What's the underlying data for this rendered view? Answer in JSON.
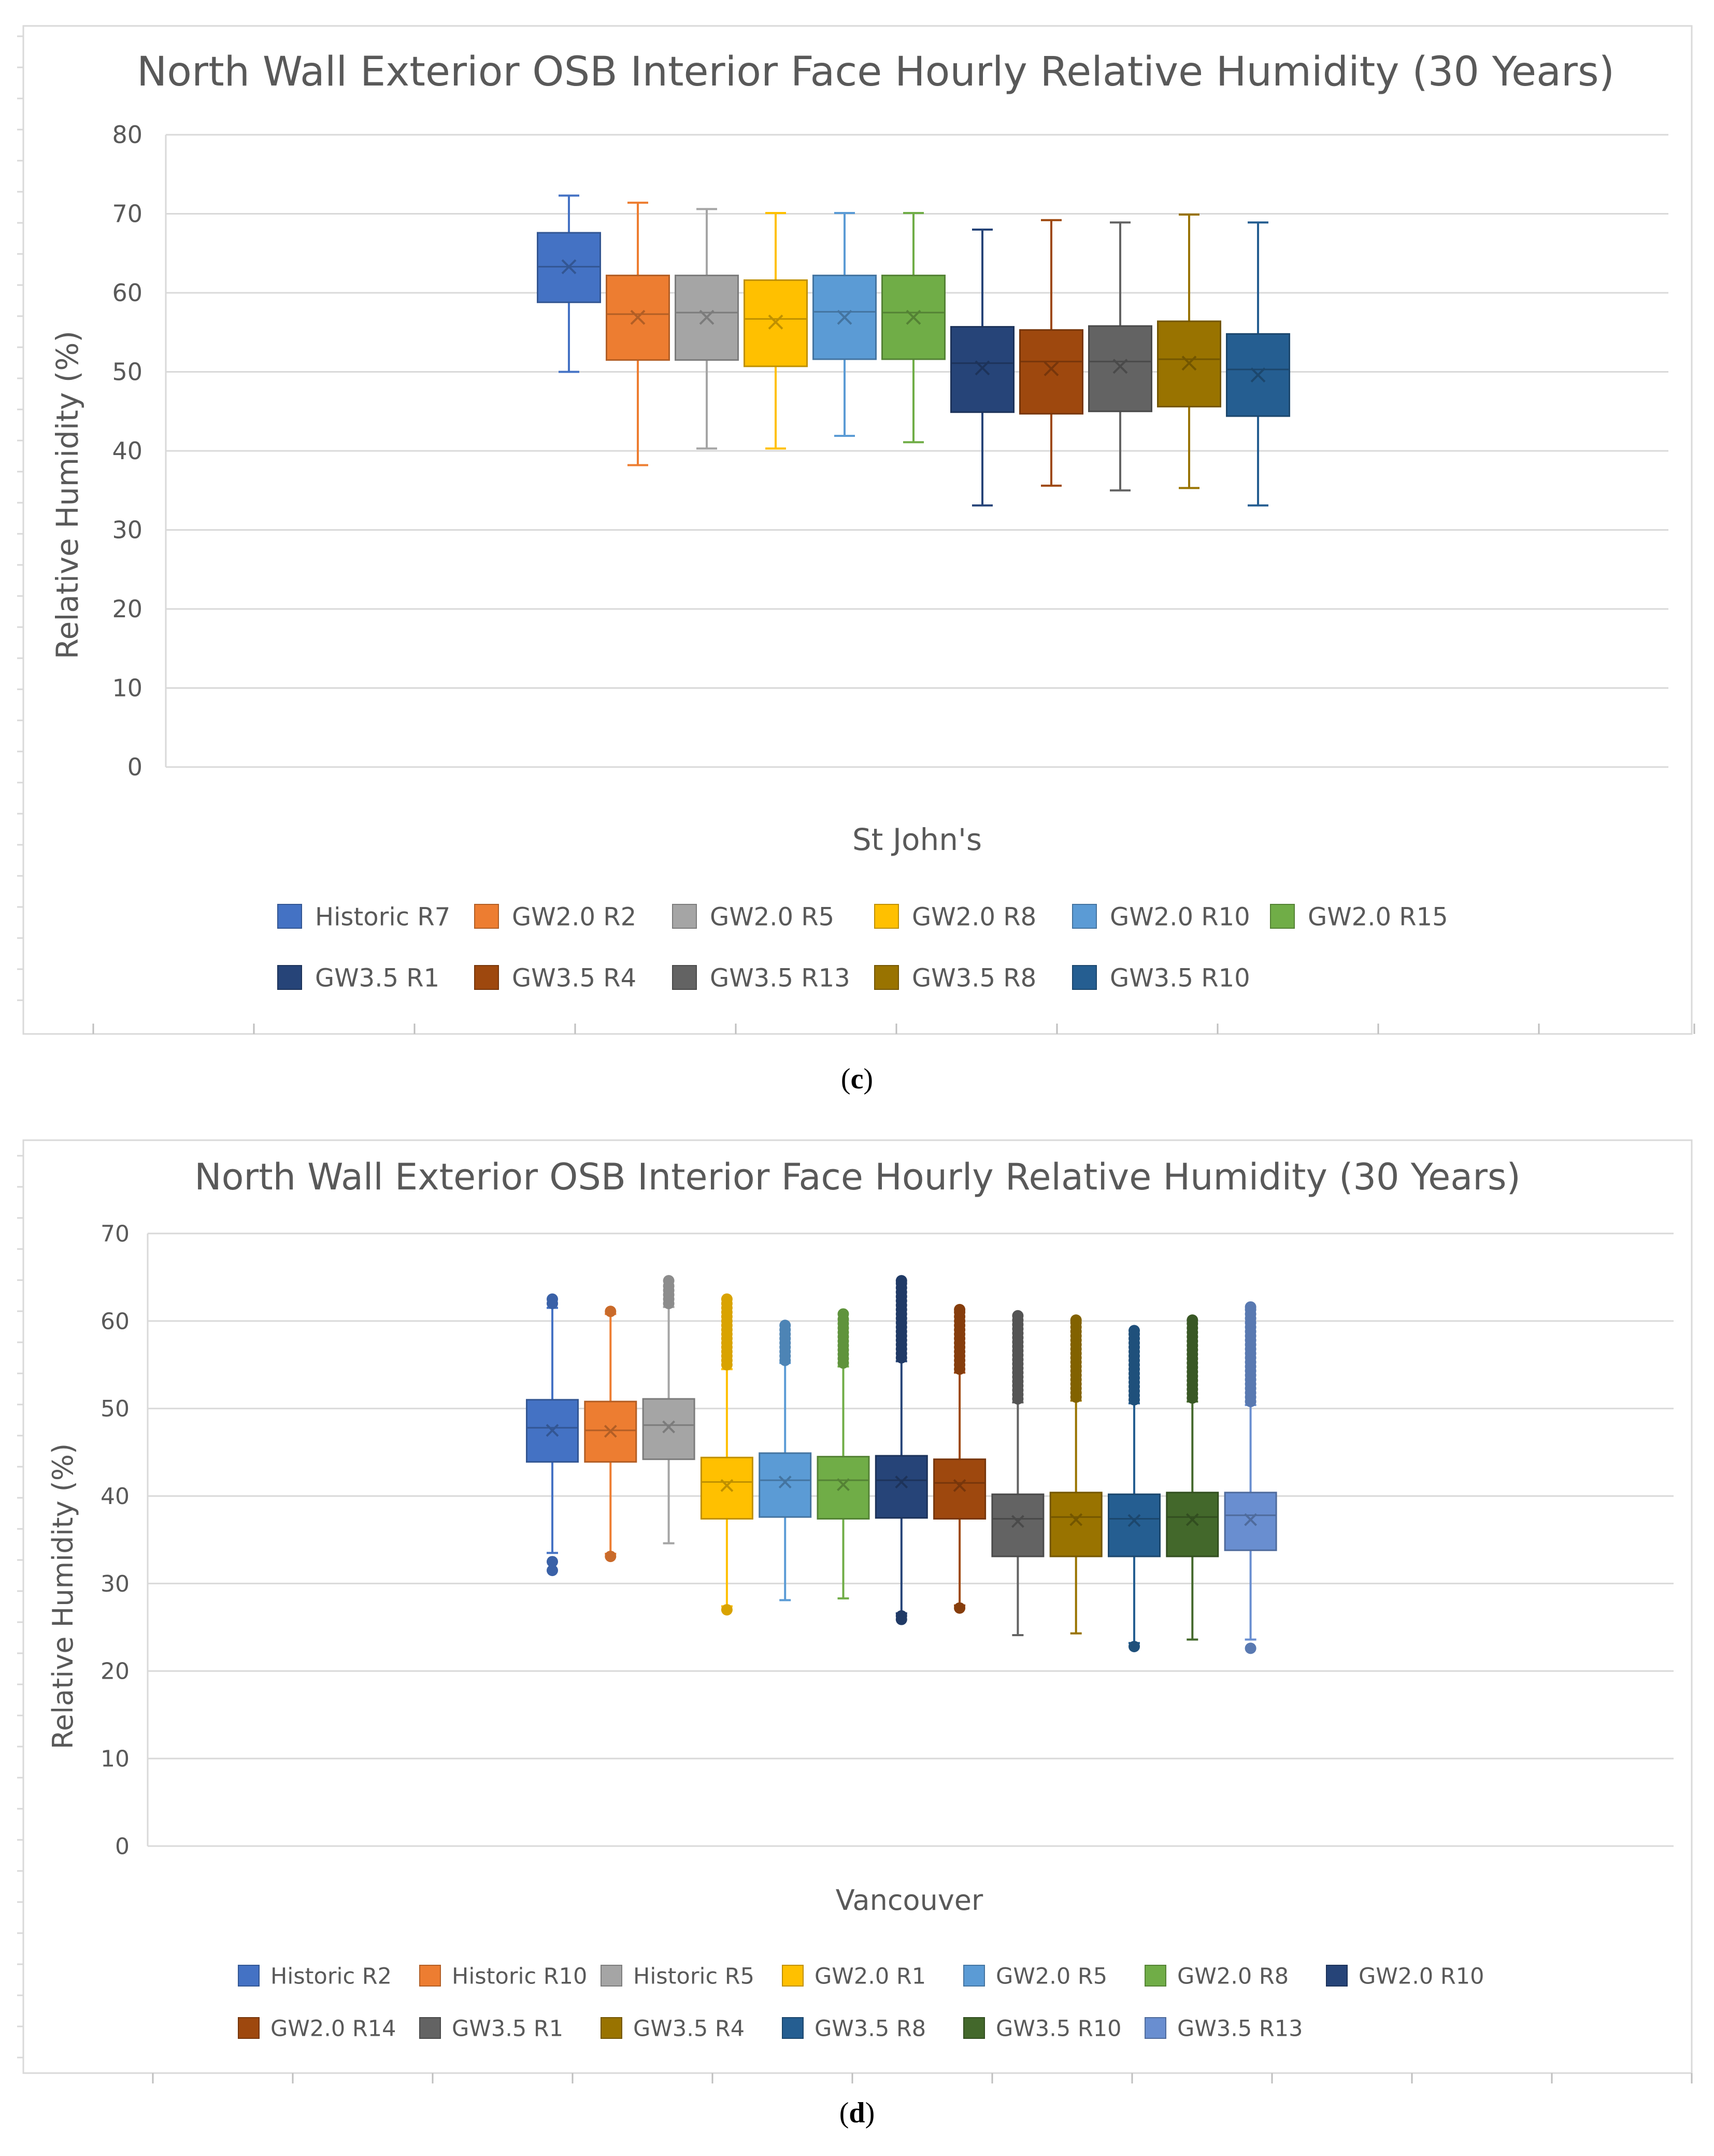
{
  "chart_data": [
    {
      "type": "box",
      "title": "North Wall Exterior OSB Interior Face Hourly Relative Humidity (30 Years)",
      "xlabel": "St John's",
      "ylabel": "Relative Humidity (%)",
      "ylim": [
        0,
        80
      ],
      "yticks": [
        "0",
        "10",
        "20",
        "30",
        "40",
        "50",
        "60",
        "70",
        "80"
      ],
      "grid": true,
      "legend_position": "bottom",
      "caption": "c",
      "series": [
        {
          "name": "Historic R7",
          "color": "#4472C4",
          "min": 50,
          "q1": 58.8,
          "median": 63.3,
          "mean": 63.3,
          "q3": 67.6,
          "max": 72.3,
          "outliers": []
        },
        {
          "name": "GW2.0 R2",
          "color": "#ED7D31",
          "min": 38.2,
          "q1": 51.5,
          "median": 57.3,
          "mean": 56.9,
          "q3": 62.2,
          "max": 71.4,
          "outliers": []
        },
        {
          "name": "GW2.0 R5",
          "color": "#A5A5A5",
          "min": 40.3,
          "q1": 51.5,
          "median": 57.5,
          "mean": 56.9,
          "q3": 62.2,
          "max": 70.6,
          "outliers": []
        },
        {
          "name": "GW2.0 R8",
          "color": "#FFC000",
          "min": 40.3,
          "q1": 50.7,
          "median": 56.7,
          "mean": 56.3,
          "q3": 61.6,
          "max": 70.1,
          "outliers": []
        },
        {
          "name": "GW2.0 R10",
          "color": "#5B9BD5",
          "min": 41.9,
          "q1": 51.6,
          "median": 57.6,
          "mean": 56.9,
          "q3": 62.2,
          "max": 70.1,
          "outliers": []
        },
        {
          "name": "GW2.0 R15",
          "color": "#70AD47",
          "min": 41.1,
          "q1": 51.6,
          "median": 57.5,
          "mean": 56.9,
          "q3": 62.2,
          "max": 70.1,
          "outliers": []
        },
        {
          "name": "GW3.5 R1",
          "color": "#264478",
          "min": 33.1,
          "q1": 44.9,
          "median": 51.1,
          "mean": 50.5,
          "q3": 55.7,
          "max": 68,
          "outliers": []
        },
        {
          "name": "GW3.5 R4",
          "color": "#9E480E",
          "min": 35.6,
          "q1": 44.7,
          "median": 51.3,
          "mean": 50.4,
          "q3": 55.3,
          "max": 69.2,
          "outliers": []
        },
        {
          "name": "GW3.5 R13",
          "color": "#636363",
          "min": 35,
          "q1": 45,
          "median": 51.3,
          "mean": 50.7,
          "q3": 55.8,
          "max": 68.9,
          "outliers": []
        },
        {
          "name": "GW3.5 R8",
          "color": "#997300",
          "min": 35.3,
          "q1": 45.6,
          "median": 51.6,
          "mean": 51.1,
          "q3": 56.4,
          "max": 69.9,
          "outliers": []
        },
        {
          "name": "GW3.5 R10",
          "color": "#255E91",
          "min": 33.1,
          "q1": 44.4,
          "median": 50.3,
          "mean": 49.6,
          "q3": 54.8,
          "max": 68.9,
          "outliers": []
        }
      ],
      "legend_rows": [
        [
          "Historic R7",
          "GW2.0 R2",
          "GW2.0 R5",
          "GW2.0 R8",
          "GW2.0 R10",
          "GW2.0 R15"
        ],
        [
          "GW3.5 R1",
          "GW3.5 R4",
          "GW3.5 R13",
          "GW3.5 R8",
          "GW3.5 R10"
        ]
      ]
    },
    {
      "type": "box",
      "title": "North Wall Exterior OSB Interior Face Hourly Relative Humidity (30 Years)",
      "xlabel": "Vancouver",
      "ylabel": "Relative Humidity (%)",
      "ylim": [
        0,
        70
      ],
      "yticks": [
        "0",
        "10",
        "20",
        "30",
        "40",
        "50",
        "60",
        "70"
      ],
      "grid": true,
      "legend_position": "bottom",
      "caption": "d",
      "series": [
        {
          "name": "Historic R2",
          "color": "#4472C4",
          "min": 33.5,
          "q1": 43.9,
          "median": 47.8,
          "mean": 47.5,
          "q3": 51,
          "max": 61.5,
          "outliers": [
            31.5,
            32.5,
            62,
            62.5
          ]
        },
        {
          "name": "Historic R10",
          "color": "#ED7D31",
          "min": 33.4,
          "q1": 43.9,
          "median": 47.5,
          "mean": 47.4,
          "q3": 50.8,
          "max": 60.8,
          "outliers": [
            33.1,
            61.1
          ]
        },
        {
          "name": "Historic R5",
          "color": "#A5A5A5",
          "min": 34.6,
          "q1": 44.2,
          "median": 48.1,
          "mean": 47.9,
          "q3": 51.1,
          "max": 61.6,
          "outliers": [
            62,
            62.5,
            63,
            63.5,
            64,
            64.6
          ]
        },
        {
          "name": "GW2.0 R1",
          "color": "#FFC000",
          "min": 27.4,
          "q1": 37.4,
          "median": 41.6,
          "mean": 41.2,
          "q3": 44.4,
          "max": 54.5,
          "outliers": [
            27,
            55,
            55.5,
            56,
            56.5,
            57,
            57.5,
            58,
            58.5,
            59,
            59.5,
            60,
            60.5,
            61,
            61.5,
            62,
            62.5
          ]
        },
        {
          "name": "GW2.0 R5",
          "color": "#5B9BD5",
          "min": 28.1,
          "q1": 37.6,
          "median": 41.8,
          "mean": 41.6,
          "q3": 44.9,
          "max": 55.2,
          "outliers": [
            55.5,
            56,
            56.5,
            57,
            57.5,
            58,
            58.5,
            59,
            59.5
          ]
        },
        {
          "name": "GW2.0 R8",
          "color": "#70AD47",
          "min": 28.3,
          "q1": 37.4,
          "median": 41.8,
          "mean": 41.3,
          "q3": 44.5,
          "max": 54.8,
          "outliers": [
            55.2,
            55.7,
            56.2,
            56.7,
            57.2,
            57.7,
            58.2,
            58.7,
            59.2,
            59.7,
            60.2,
            60.8
          ]
        },
        {
          "name": "GW2.0 R10",
          "color": "#264478",
          "min": 26.6,
          "q1": 37.5,
          "median": 41.8,
          "mean": 41.6,
          "q3": 44.6,
          "max": 55.4,
          "outliers": [
            25.9,
            26.3,
            55.8,
            56.3,
            56.8,
            57.3,
            57.8,
            58.3,
            58.8,
            59.3,
            59.8,
            60.3,
            60.8,
            61.3,
            61.8,
            62.3,
            62.8,
            63.3,
            63.8,
            64.3,
            64.6
          ]
        },
        {
          "name": "GW2.0 R14",
          "color": "#9E480E",
          "min": 27.5,
          "q1": 37.4,
          "median": 41.5,
          "mean": 41.2,
          "q3": 44.2,
          "max": 54.1,
          "outliers": [
            27.2,
            54.5,
            55,
            55.5,
            56,
            56.5,
            57,
            57.5,
            58,
            58.5,
            59,
            59.5,
            60,
            60.5,
            61,
            61.3
          ]
        },
        {
          "name": "GW3.5 R1",
          "color": "#636363",
          "min": 24.1,
          "q1": 33.1,
          "median": 37.4,
          "mean": 37.1,
          "q3": 40.2,
          "max": 50.7,
          "outliers": [
            51.1,
            51.6,
            52.1,
            52.6,
            53.1,
            53.6,
            54.1,
            54.6,
            55.1,
            55.6,
            56.1,
            56.6,
            57.1,
            57.6,
            58.1,
            58.6,
            59.1,
            59.6,
            60.1,
            60.6
          ]
        },
        {
          "name": "GW3.5 R4",
          "color": "#997300",
          "min": 24.3,
          "q1": 33.1,
          "median": 37.6,
          "mean": 37.3,
          "q3": 40.4,
          "max": 50.9,
          "outliers": [
            51.3,
            51.8,
            52.3,
            52.8,
            53.3,
            53.8,
            54.3,
            54.8,
            55.3,
            55.8,
            56.3,
            56.8,
            57.3,
            57.8,
            58.3,
            58.8,
            59.3,
            59.8,
            60.1
          ]
        },
        {
          "name": "GW3.5 R8",
          "color": "#255E91",
          "min": 23.2,
          "q1": 33.1,
          "median": 37.4,
          "mean": 37.2,
          "q3": 40.2,
          "max": 50.6,
          "outliers": [
            22.8,
            51,
            51.5,
            52,
            52.5,
            53,
            53.5,
            54,
            54.5,
            55,
            55.5,
            56,
            56.5,
            57,
            57.5,
            58,
            58.5,
            58.9
          ]
        },
        {
          "name": "GW3.5 R10",
          "color": "#43682B",
          "min": 23.6,
          "q1": 33.1,
          "median": 37.6,
          "mean": 37.3,
          "q3": 40.4,
          "max": 50.8,
          "outliers": [
            51.2,
            51.7,
            52.2,
            52.7,
            53.2,
            53.7,
            54.2,
            54.7,
            55.2,
            55.7,
            56.2,
            56.7,
            57.2,
            57.7,
            58.2,
            58.7,
            59.2,
            59.7,
            60.1
          ]
        },
        {
          "name": "GW3.5 R13",
          "color": "#698ED0",
          "min": 23.6,
          "q1": 33.8,
          "median": 37.8,
          "mean": 37.3,
          "q3": 40.4,
          "max": 50.4,
          "outliers": [
            22.6,
            50.8,
            51.3,
            51.8,
            52.3,
            52.8,
            53.3,
            53.8,
            54.3,
            54.8,
            55.3,
            55.8,
            56.3,
            56.8,
            57.3,
            57.8,
            58.3,
            58.8,
            59.3,
            59.8,
            60.3,
            60.8,
            61.3,
            61.6
          ]
        }
      ],
      "legend_rows": [
        [
          "Historic R2",
          "Historic R10",
          "Historic R5",
          "GW2.0 R1",
          "GW2.0 R5",
          "GW2.0 R8",
          "GW2.0 R10"
        ],
        [
          "GW2.0 R14",
          "GW3.5 R1",
          "GW3.5 R4",
          "GW3.5 R8",
          "GW3.5 R10",
          "GW3.5 R13"
        ]
      ]
    }
  ]
}
